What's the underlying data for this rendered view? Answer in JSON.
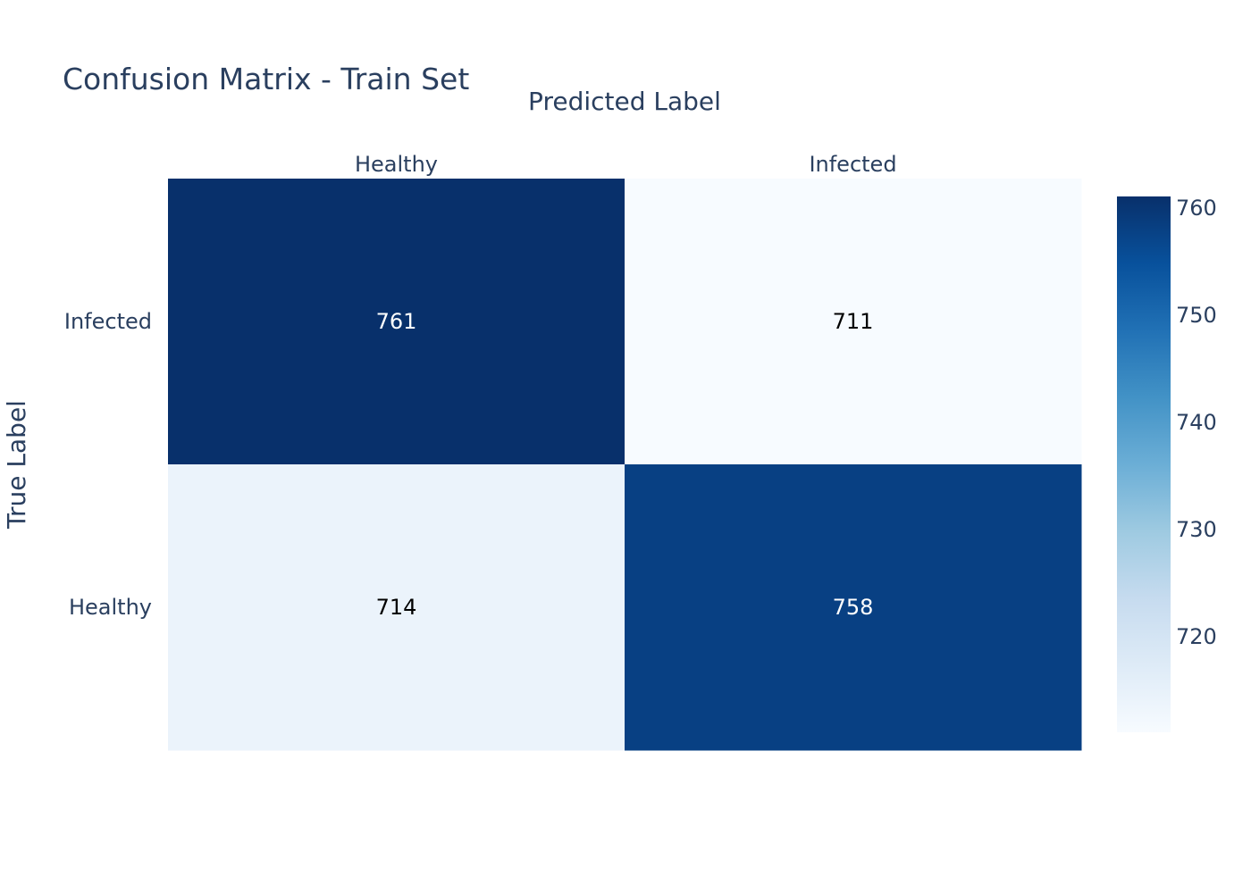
{
  "chart_data": {
    "type": "heatmap",
    "title": "Confusion Matrix - Train Set",
    "xlabel": "Predicted Label",
    "ylabel": "True Label",
    "x_categories": [
      "Healthy",
      "Infected"
    ],
    "y_categories": [
      "Infected",
      "Healthy"
    ],
    "values": [
      [
        761,
        711
      ],
      [
        714,
        758
      ]
    ],
    "colorscale": "Blues",
    "colorbar": {
      "range": [
        711,
        761
      ],
      "ticks": [
        720,
        730,
        740,
        750,
        760
      ]
    },
    "x_axis_side": "top",
    "grid": false,
    "legend": "colorbar-right"
  },
  "colors": {
    "text_dark": "#2a3f5f",
    "cell_text_light": "#ffffff",
    "cell_text_dark": "#000000",
    "scale": [
      "#f7fbff",
      "#deebf7",
      "#c6dbef",
      "#9ecae1",
      "#6baed6",
      "#4292c6",
      "#2171b5",
      "#08519c",
      "#08306b"
    ]
  }
}
